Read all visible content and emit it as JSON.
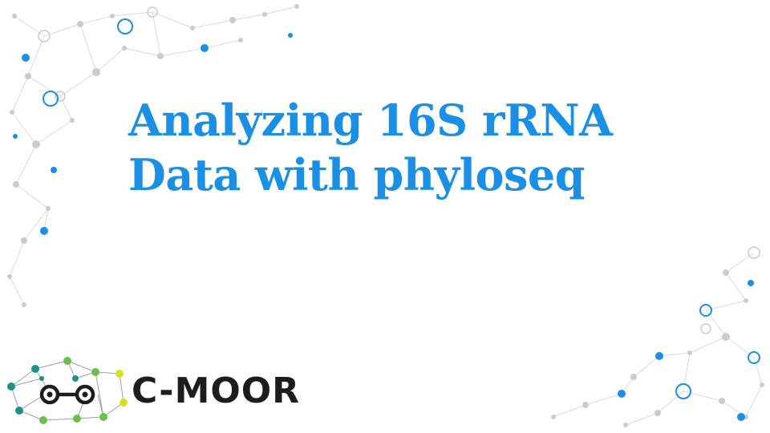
{
  "slide": {
    "title_line1": "Analyzing 16S rRNA",
    "title_line2": "Data with phyloseq"
  },
  "logo": {
    "text": "C-MOOR",
    "icon": "network-goggles-icon"
  },
  "colors": {
    "title": "#1a8fe3",
    "accent_blue": "#1a8fe3",
    "network_grey": "#c8ccd0",
    "logo_text": "#1d1d1d",
    "logo_green": "#6cc04a",
    "logo_teal": "#1e8f8a",
    "logo_yellow": "#d9e021"
  }
}
